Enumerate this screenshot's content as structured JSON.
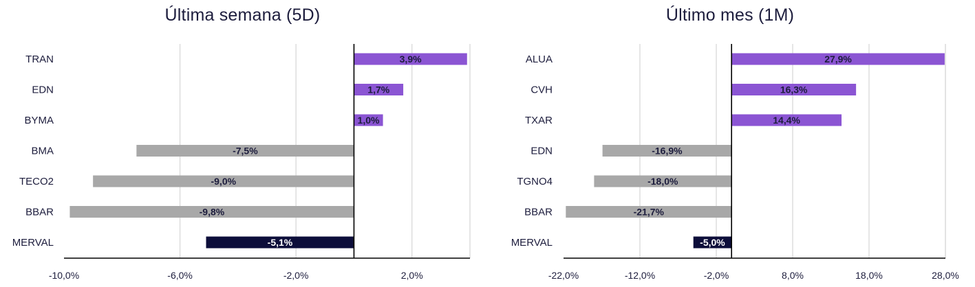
{
  "chart_data": [
    {
      "type": "bar",
      "orientation": "horizontal",
      "title": "Última semana (5D)",
      "categories": [
        "TRAN",
        "EDN",
        "BYMA",
        "BMA",
        "TECO2",
        "BBAR",
        "MERVAL"
      ],
      "values": [
        3.9,
        1.7,
        1.0,
        -7.5,
        -9.0,
        -9.8,
        -5.1
      ],
      "labels": [
        "3,9%",
        "1,7%",
        "1,0%",
        "-7,5%",
        "-9,0%",
        "-9,8%",
        "-5,1%"
      ],
      "xlim": [
        -10,
        4
      ],
      "xticks": [
        -10,
        -6,
        -2,
        2
      ],
      "xtick_labels": [
        "-10,0%",
        "-6,0%",
        "-2,0%",
        "2,0%"
      ],
      "grid": "vertical",
      "colors": {
        "positive": "#8B55D3",
        "negative": "#A8A8A8",
        "index": "#0D0E3A"
      }
    },
    {
      "type": "bar",
      "orientation": "horizontal",
      "title": "Último mes (1M)",
      "categories": [
        "ALUA",
        "CVH",
        "TXAR",
        "EDN",
        "TGNO4",
        "BBAR",
        "MERVAL"
      ],
      "values": [
        27.9,
        16.3,
        14.4,
        -16.9,
        -18.0,
        -21.7,
        -5.0
      ],
      "labels": [
        "27,9%",
        "16,3%",
        "14,4%",
        "-16,9%",
        "-18,0%",
        "-21,7%",
        "-5,0%"
      ],
      "xlim": [
        -22,
        28
      ],
      "xticks": [
        -22,
        -12,
        -2,
        8,
        18,
        28
      ],
      "xtick_labels": [
        "-22,0%",
        "-12,0%",
        "-2,0%",
        "8,0%",
        "18,0%",
        "28,0%"
      ],
      "grid": "vertical",
      "colors": {
        "positive": "#8B55D3",
        "negative": "#A8A8A8",
        "index": "#0D0E3A"
      }
    }
  ]
}
